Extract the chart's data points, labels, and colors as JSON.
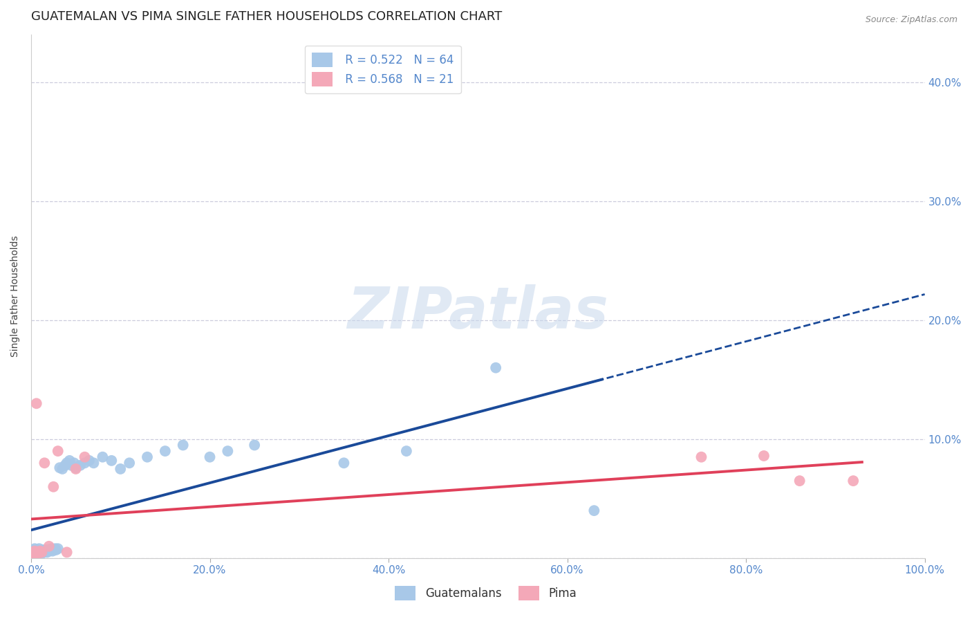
{
  "title": "GUATEMALAN VS PIMA SINGLE FATHER HOUSEHOLDS CORRELATION CHART",
  "source": "Source: ZipAtlas.com",
  "ylabel": "Single Father Households",
  "xlabel": "",
  "xlim": [
    0,
    1.0
  ],
  "ylim": [
    0,
    0.44
  ],
  "xticks": [
    0.0,
    0.2,
    0.4,
    0.6,
    0.8,
    1.0
  ],
  "xticklabels": [
    "0.0%",
    "20.0%",
    "40.0%",
    "60.0%",
    "80.0%",
    "100.0%"
  ],
  "yticks": [
    0.0,
    0.1,
    0.2,
    0.3,
    0.4
  ],
  "yticklabels_right": [
    "",
    "10.0%",
    "20.0%",
    "30.0%",
    "40.0%"
  ],
  "guatemalan_R": 0.522,
  "guatemalan_N": 64,
  "pima_R": 0.568,
  "pima_N": 21,
  "guatemalan_color": "#a8c8e8",
  "pima_color": "#f4a8b8",
  "guatemalan_line_color": "#1a4a99",
  "pima_line_color": "#e0405a",
  "background_color": "#ffffff",
  "tick_color": "#5588cc",
  "grid_color": "#ccccdd",
  "watermark": "ZIPatlas",
  "title_fontsize": 13,
  "axis_label_fontsize": 10,
  "tick_fontsize": 11,
  "guatemalan_x": [
    0.001,
    0.002,
    0.002,
    0.003,
    0.003,
    0.003,
    0.004,
    0.004,
    0.004,
    0.005,
    0.005,
    0.005,
    0.006,
    0.006,
    0.007,
    0.007,
    0.008,
    0.008,
    0.009,
    0.009,
    0.01,
    0.011,
    0.012,
    0.013,
    0.014,
    0.015,
    0.016,
    0.017,
    0.018,
    0.019,
    0.02,
    0.022,
    0.023,
    0.024,
    0.025,
    0.027,
    0.028,
    0.03,
    0.032,
    0.035,
    0.038,
    0.04,
    0.043,
    0.045,
    0.048,
    0.05,
    0.055,
    0.06,
    0.065,
    0.07,
    0.08,
    0.09,
    0.1,
    0.11,
    0.13,
    0.15,
    0.17,
    0.2,
    0.22,
    0.25,
    0.35,
    0.42,
    0.52,
    0.63
  ],
  "guatemalan_y": [
    0.003,
    0.004,
    0.005,
    0.003,
    0.005,
    0.007,
    0.004,
    0.006,
    0.008,
    0.003,
    0.005,
    0.007,
    0.004,
    0.006,
    0.003,
    0.006,
    0.004,
    0.007,
    0.005,
    0.008,
    0.005,
    0.006,
    0.004,
    0.007,
    0.005,
    0.006,
    0.007,
    0.006,
    0.005,
    0.007,
    0.006,
    0.007,
    0.008,
    0.006,
    0.007,
    0.008,
    0.007,
    0.008,
    0.076,
    0.075,
    0.078,
    0.08,
    0.082,
    0.078,
    0.08,
    0.076,
    0.078,
    0.08,
    0.082,
    0.08,
    0.085,
    0.082,
    0.075,
    0.08,
    0.085,
    0.09,
    0.095,
    0.085,
    0.09,
    0.095,
    0.08,
    0.09,
    0.16,
    0.04
  ],
  "pima_x": [
    0.001,
    0.002,
    0.003,
    0.004,
    0.005,
    0.006,
    0.007,
    0.008,
    0.01,
    0.012,
    0.015,
    0.02,
    0.025,
    0.03,
    0.04,
    0.05,
    0.06,
    0.75,
    0.82,
    0.86,
    0.92
  ],
  "pima_y": [
    0.004,
    0.005,
    0.003,
    0.006,
    0.004,
    0.13,
    0.005,
    0.004,
    0.006,
    0.005,
    0.08,
    0.01,
    0.06,
    0.09,
    0.005,
    0.075,
    0.085,
    0.085,
    0.086,
    0.065,
    0.065
  ]
}
